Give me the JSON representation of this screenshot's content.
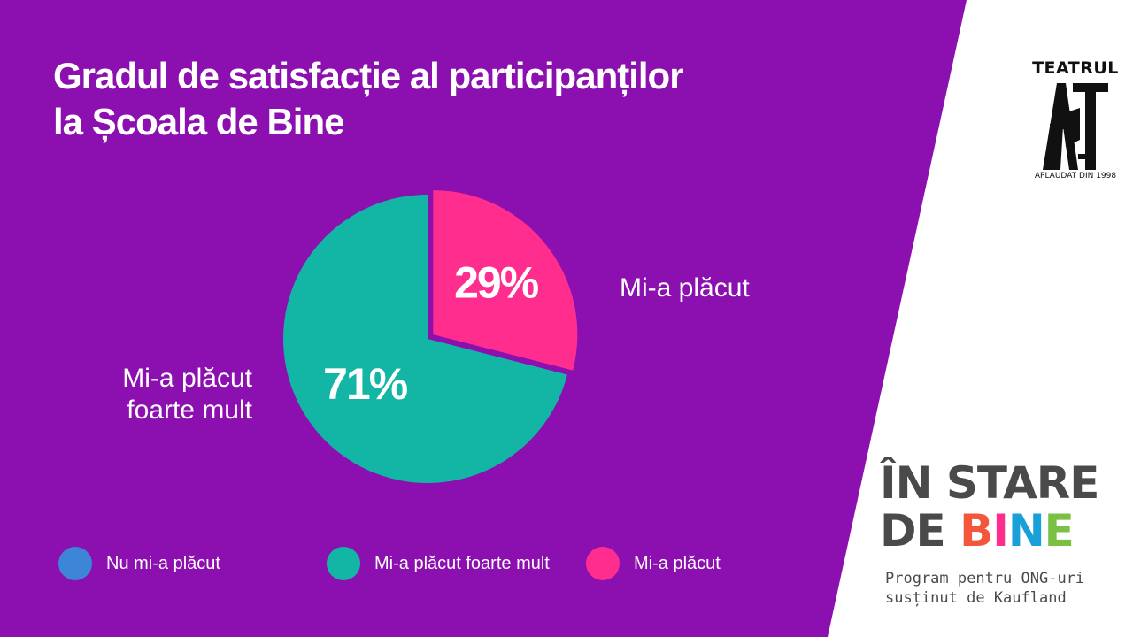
{
  "slide": {
    "title_line1": "Gradul de satisfacție al participanților",
    "title_line2": "la Școala de Bine",
    "colors": {
      "background": "#8c0fb0",
      "panel": "#ffffff"
    }
  },
  "chart_data": {
    "type": "pie",
    "title": "Gradul de satisfacție al participanților la Școala de Bine",
    "slices": [
      {
        "label": "Mi-a plăcut",
        "value": 29,
        "data_label": "29%",
        "color": "#ff2e8e",
        "exploded": true
      },
      {
        "label": "Mi-a plăcut foarte mult",
        "value": 71,
        "data_label": "71%",
        "color": "#13b6a5",
        "exploded": false
      }
    ],
    "outer_labels": {
      "right": "Mi-a plăcut",
      "left_line1": "Mi-a plăcut",
      "left_line2": "foarte mult"
    },
    "legend": {
      "position": "bottom",
      "items": [
        {
          "label": "Nu mi-a plăcut",
          "color": "#3d85d6"
        },
        {
          "label": "Mi-a plăcut foarte mult",
          "color": "#13b6a5"
        },
        {
          "label": "Mi-a plăcut",
          "color": "#ff2e8e"
        }
      ]
    }
  },
  "logos": {
    "act": {
      "top": "TEATRUL",
      "bottom": "APLAUDAT DIN 1998",
      "icon": "act-logo-icon"
    },
    "in_stare_de_bine": {
      "line1": "ÎN STARE",
      "line2_de": "DE ",
      "line2_bine": [
        "B",
        "I",
        "N",
        "E"
      ],
      "bine_colors": [
        "#f2573b",
        "#ff2e8e",
        "#1aa0d8",
        "#7ac143"
      ],
      "sub1": "Program pentru ONG-uri",
      "sub2": "susținut de Kaufland"
    }
  }
}
